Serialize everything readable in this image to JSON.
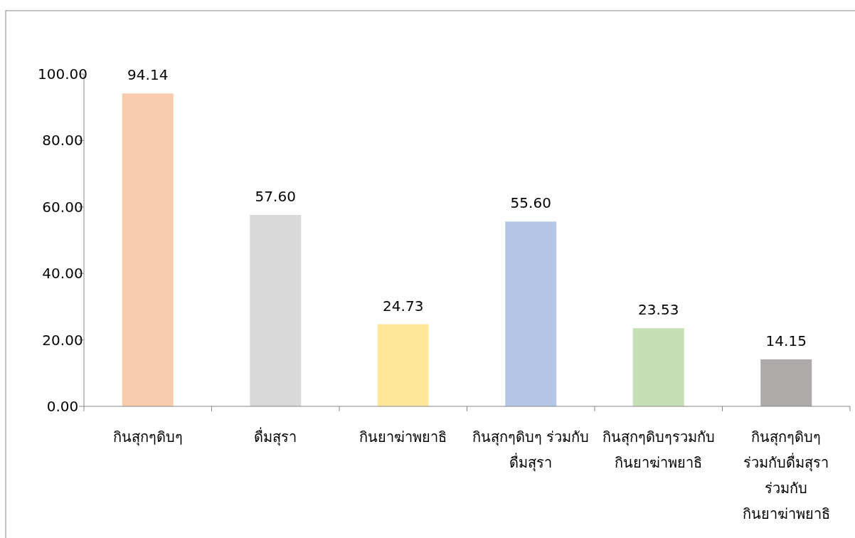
{
  "chart_data": {
    "type": "bar",
    "categories": [
      "กินสุกๆดิบๆ",
      "ดื่มสุรา",
      "กินยาฆ่าพยาธิ",
      "กินสุกๆดิบๆ ร่วมกับ ดื่มสุรา",
      "กินสุกๆดิบๆรวมกับ กินยาฆ่าพยาธิ",
      "กินสุกๆดิบๆ ร่วมกับดื่มสุรา ร่วมกับ กินยาฆ่าพยาธิ"
    ],
    "values": [
      94.14,
      57.6,
      24.73,
      55.6,
      23.53,
      14.15
    ],
    "colors": [
      "#f8cbad",
      "#d9d9d9",
      "#ffe699",
      "#b4c7e7",
      "#c5e0b4",
      "#aeaaaa"
    ],
    "ylim": [
      0,
      100
    ],
    "yticks": [
      {
        "value": 0,
        "label": "0.00"
      },
      {
        "value": 20,
        "label": "20.00"
      },
      {
        "value": 40,
        "label": "40.00"
      },
      {
        "value": 60,
        "label": "60.00"
      },
      {
        "value": 80,
        "label": "80.00"
      },
      {
        "value": 100,
        "label": "100.00"
      }
    ],
    "value_labels": [
      "94.14",
      "57.60",
      "24.73",
      "55.60",
      "23.53",
      "14.15"
    ],
    "grid": false
  }
}
